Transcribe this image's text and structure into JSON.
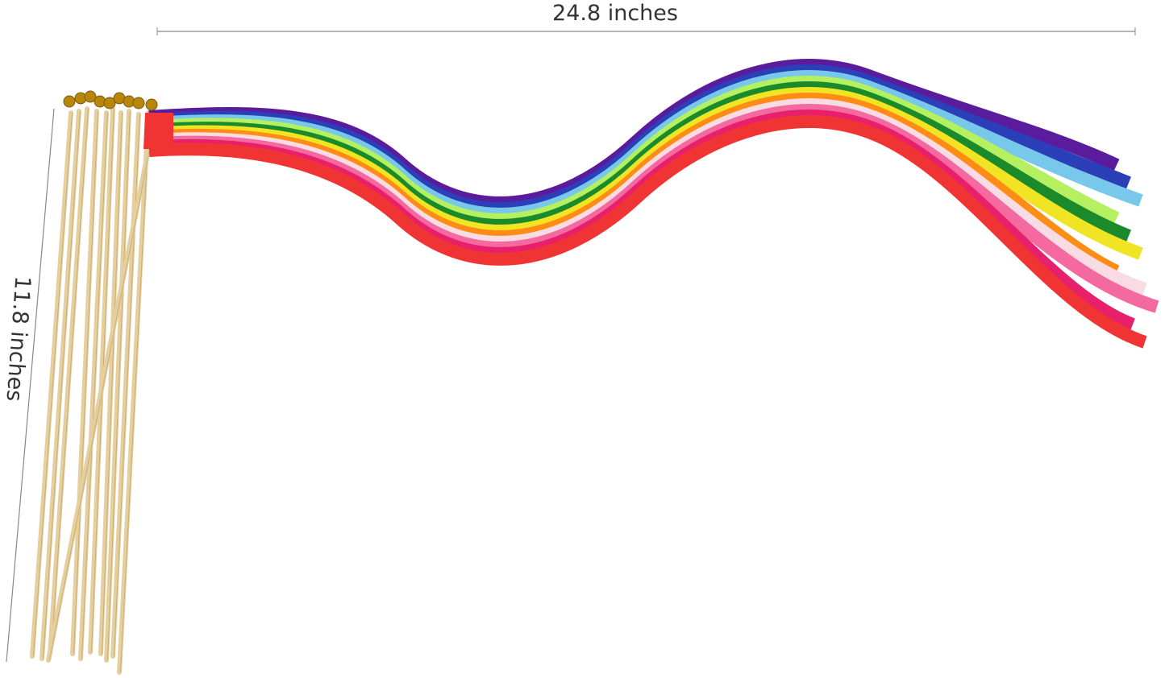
{
  "dimensions": {
    "width_label": "24.8 inches",
    "height_label": "11.8 inches"
  },
  "ribbon_colors": [
    "#5a1c9c",
    "#2a3fb8",
    "#78c8ec",
    "#b4f060",
    "#1a8a2a",
    "#f0e424",
    "#ff8c14",
    "#f8dbe3",
    "#f46aa0",
    "#e8206c",
    "#f03434"
  ],
  "stick_color": "#e6cf9e",
  "bell_color": "#b8860b"
}
